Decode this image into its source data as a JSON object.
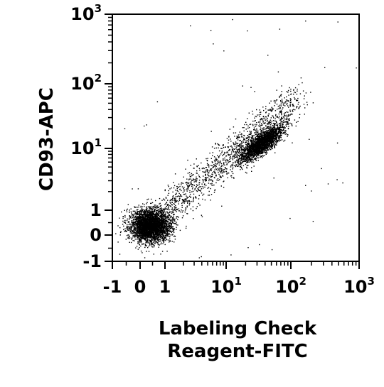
{
  "chart_data": {
    "type": "scatter",
    "title": "",
    "xlabel_lines": [
      "Labeling Check",
      "Reagent-FITC"
    ],
    "ylabel": "CD93-APC",
    "x_scale": "biexponential",
    "y_scale": "biexponential",
    "xlim": [
      -1,
      1000
    ],
    "ylim": [
      -1,
      1000
    ],
    "x_ticks": [
      {
        "value": -1,
        "base": "-1",
        "exp": ""
      },
      {
        "value": 0,
        "base": "0",
        "exp": ""
      },
      {
        "value": 1,
        "base": "1",
        "exp": ""
      },
      {
        "value": 10,
        "base": "10",
        "exp": "1"
      },
      {
        "value": 100,
        "base": "10",
        "exp": "2"
      },
      {
        "value": 1000,
        "base": "10",
        "exp": "3"
      }
    ],
    "y_ticks": [
      {
        "value": -1,
        "base": "-1",
        "exp": ""
      },
      {
        "value": 0,
        "base": "0",
        "exp": ""
      },
      {
        "value": 1,
        "base": "1",
        "exp": ""
      },
      {
        "value": 10,
        "base": "10",
        "exp": "1"
      },
      {
        "value": 100,
        "base": "10",
        "exp": "2"
      },
      {
        "value": 1000,
        "base": "10",
        "exp": "3"
      }
    ],
    "grid": false,
    "legend": "none",
    "point_color": "#000000",
    "populations": [
      {
        "center_x": 0.4,
        "center_y": 0.4,
        "spread": "dense low cluster"
      },
      {
        "center_x": 35,
        "center_y": 12,
        "spread": "dense diagonal cluster"
      },
      {
        "from_x": 1,
        "from_y": 1,
        "to_x": 120,
        "to_y": 60,
        "spread": "sparse diagonal bridge"
      }
    ]
  }
}
